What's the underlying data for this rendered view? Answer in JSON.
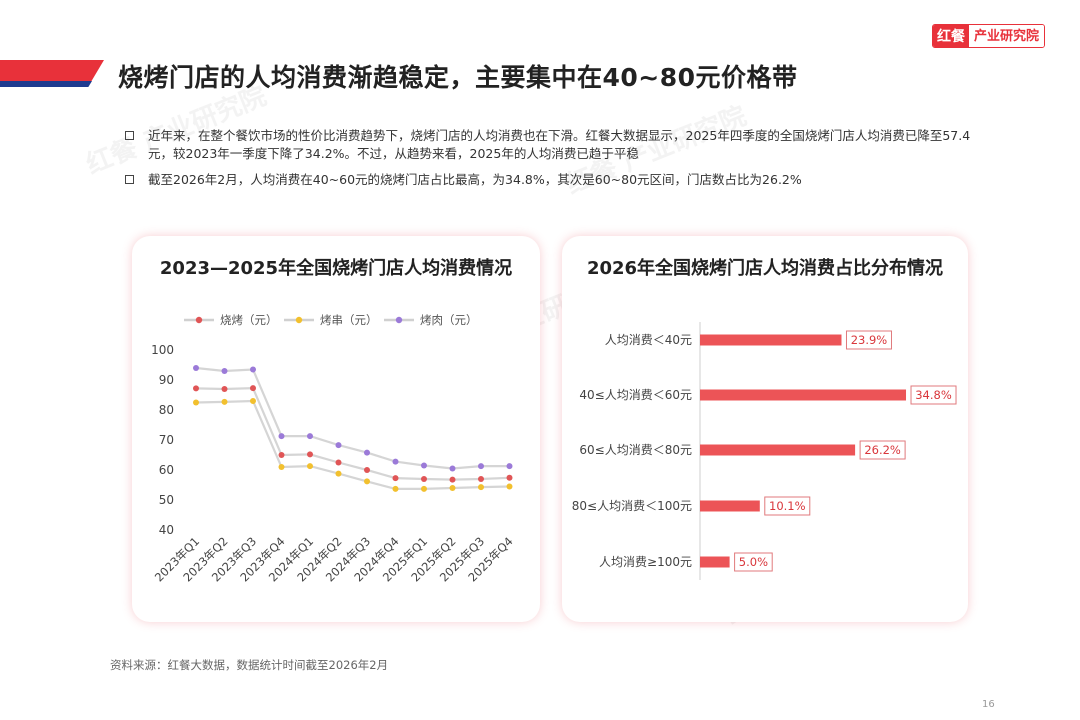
{
  "header": {
    "title": "烧烤门店的人均消费渐趋稳定，主要集中在40~80元价格带",
    "logo_mark": "红餐",
    "logo_text": "产业研究院"
  },
  "bullets": [
    "近年来，在整个餐饮市场的性价比消费趋势下，烧烤门店的人均消费也在下滑。红餐大数据显示，2025年四季度的全国烧烤门店人均消费已降至57.4元，较2023年一季度下降了34.2%。不过，从趋势来看，2025年的人均消费已趋于平稳",
    "截至2026年2月，人均消费在40~60元的烧烤门店占比最高，为34.8%，其次是60~80元区间，门店数占比为26.2%"
  ],
  "footer": {
    "source": "资料来源：红餐大数据，数据统计时间截至2026年2月",
    "page": "16"
  },
  "colors": {
    "accent_red": "#e8313a",
    "navy": "#1f3b8f",
    "series_red": "#e05556",
    "series_yellow": "#f2c02e",
    "series_purple": "#9b7ad8",
    "bar": "#ec5457"
  },
  "chart_data": [
    {
      "type": "line",
      "title": "2023—2025年全国烧烤门店人均消费情况",
      "categories": [
        "2023年Q1",
        "2023年Q2",
        "2023年Q3",
        "2023年Q4",
        "2024年Q1",
        "2024年Q2",
        "2024年Q3",
        "2024年Q4",
        "2025年Q1",
        "2025年Q2",
        "2025年Q3",
        "2025年Q4"
      ],
      "series": [
        {
          "name": "烧烤（元）",
          "color": "#e05556",
          "values": [
            87.2,
            87.0,
            87.3,
            65.0,
            65.2,
            62.5,
            60.0,
            57.3,
            57.0,
            56.8,
            57.0,
            57.4
          ]
        },
        {
          "name": "烤串（元）",
          "color": "#f2c02e",
          "values": [
            82.5,
            82.7,
            83.0,
            61.0,
            61.3,
            58.8,
            56.2,
            53.7,
            53.7,
            54.0,
            54.3,
            54.5
          ]
        },
        {
          "name": "烤肉（元）",
          "color": "#9b7ad8",
          "values": [
            94.0,
            93.0,
            93.5,
            71.3,
            71.3,
            68.3,
            65.8,
            62.8,
            61.5,
            60.5,
            61.3,
            61.3
          ]
        }
      ],
      "y_ticks": [
        "100",
        "90",
        "80",
        "70",
        "60",
        "50",
        "40"
      ],
      "ylim": [
        40,
        100
      ],
      "grid": false,
      "legend": "top"
    },
    {
      "type": "bar",
      "orientation": "horizontal",
      "title": "2026年全国烧烤门店人均消费占比分布情况",
      "categories": [
        "人均消费＜40元",
        "40≤人均消费＜60元",
        "60≤人均消费＜80元",
        "80≤人均消费＜100元",
        "人均消费≥100元"
      ],
      "values": [
        23.9,
        34.8,
        26.2,
        10.1,
        5.0
      ],
      "value_labels": [
        "23.9%",
        "34.8%",
        "26.2%",
        "10.1%",
        "5.0%"
      ],
      "xlim": [
        0,
        40
      ]
    }
  ]
}
